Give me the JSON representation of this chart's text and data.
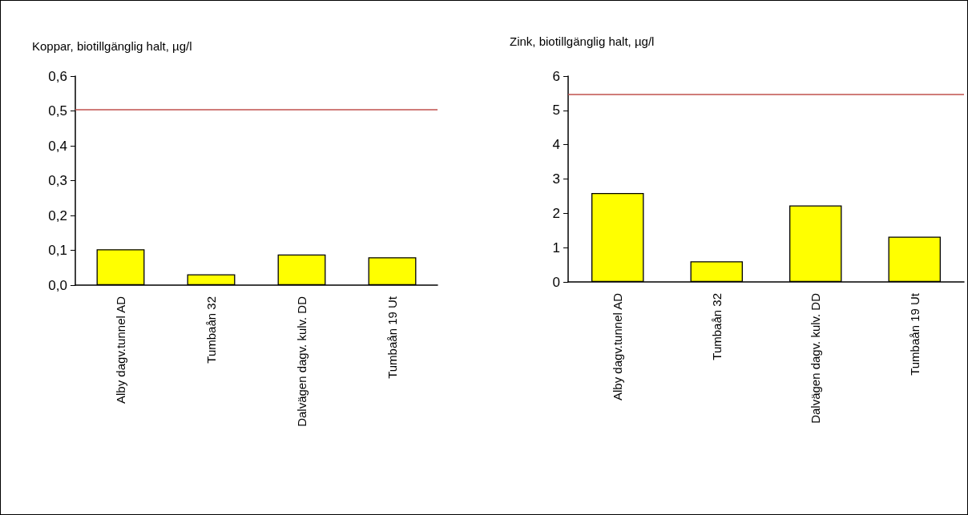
{
  "chart_data": [
    {
      "type": "bar",
      "title": "Koppar, biotillgänglig halt, µg/l",
      "categories": [
        "Alby dagv.tunnel AD",
        "Tumbaån 32",
        "Dalvägen dagv. kulv. DD",
        "Tumbaån 19 Ut"
      ],
      "values": [
        0.103,
        0.031,
        0.088,
        0.08
      ],
      "color": "#ffff00",
      "ylim": [
        0,
        0.6
      ],
      "yticks": [
        {
          "value": 0,
          "label": "0,0"
        },
        {
          "value": 0.1,
          "label": "0,1"
        },
        {
          "value": 0.2,
          "label": "0,2"
        },
        {
          "value": 0.3,
          "label": "0,3"
        },
        {
          "value": 0.4,
          "label": "0,4"
        },
        {
          "value": 0.5,
          "label": "0,5"
        },
        {
          "value": 0.6,
          "label": "0,6"
        }
      ],
      "ref_lines": [
        {
          "axis": "y",
          "value": 0.505,
          "color": "#c0504d"
        }
      ],
      "grid": false
    },
    {
      "type": "bar",
      "title": "Zink, biotillgänglig halt, µg/l",
      "categories": [
        "Alby dagv.tunnel AD",
        "Tumbaån 32",
        "Dalvägen dagv. kulv. DD",
        "Tumbaån 19 Ut"
      ],
      "values": [
        2.59,
        0.6,
        2.23,
        1.32
      ],
      "color": "#ffff00",
      "ylim": [
        0,
        6
      ],
      "yticks": [
        0,
        1,
        2,
        3,
        4,
        5,
        6
      ],
      "ref_lines": [
        {
          "axis": "y",
          "value": 5.46,
          "color": "#c0504d"
        }
      ],
      "grid": false
    }
  ]
}
